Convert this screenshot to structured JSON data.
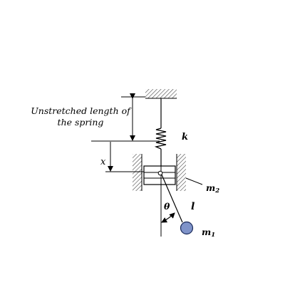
{
  "labels": {
    "unstretched_line1": "Unstretched length of",
    "unstretched_line2": "the spring",
    "x": "x",
    "k": "k",
    "m2": "m",
    "m2_sub": "2",
    "l": "l",
    "theta": "θ",
    "m1": "m",
    "m1_sub": "1"
  },
  "colors": {
    "line": "#000000",
    "hatch": "#444444",
    "mass_fill": "#7f93c9",
    "mass_stroke": "#1a2a5a"
  }
}
